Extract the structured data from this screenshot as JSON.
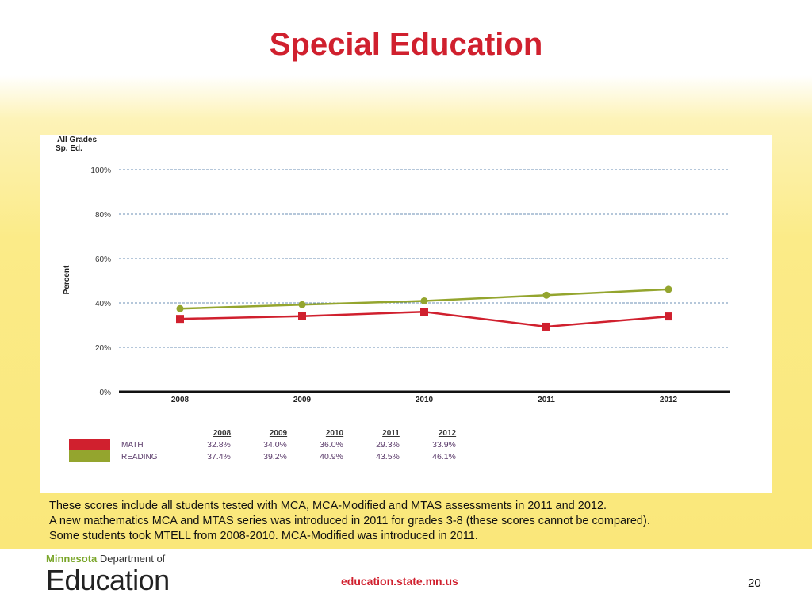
{
  "title": "Special Education",
  "chart_data": {
    "type": "line",
    "title_lines": [
      "All Grades",
      "Sp. Ed."
    ],
    "ylabel": "Percent",
    "categories": [
      "2008",
      "2009",
      "2010",
      "2011",
      "2012"
    ],
    "ylim": [
      0,
      100
    ],
    "yticks": [
      "0%",
      "20%",
      "40%",
      "60%",
      "80%",
      "100%"
    ],
    "grid": true,
    "series": [
      {
        "name": "MATH",
        "color": "#d0202e",
        "marker": "square",
        "values": [
          32.8,
          34.0,
          36.0,
          29.3,
          33.9
        ],
        "labels": [
          "32.8%",
          "34.0%",
          "36.0%",
          "29.3%",
          "33.9%"
        ]
      },
      {
        "name": "READING",
        "color": "#94a52e",
        "marker": "circle",
        "values": [
          37.4,
          39.2,
          40.9,
          43.5,
          46.1
        ],
        "labels": [
          "37.4%",
          "39.2%",
          "40.9%",
          "43.5%",
          "46.1%"
        ]
      }
    ]
  },
  "notes": [
    "These scores include all students tested with MCA, MCA-Modified and MTAS assessments in 2011 and 2012.",
    "A new mathematics MCA and MTAS series was introduced in 2011 for grades 3-8 (these scores cannot be compared).",
    "Some students took MTELL from 2008-2010.  MCA-Modified was introduced in 2011."
  ],
  "footer": {
    "logo_top_bold": "Minnesota",
    "logo_top_rest": " Department of",
    "logo_big": "Education",
    "url": "education.state.mn.us",
    "page_number": "20"
  }
}
